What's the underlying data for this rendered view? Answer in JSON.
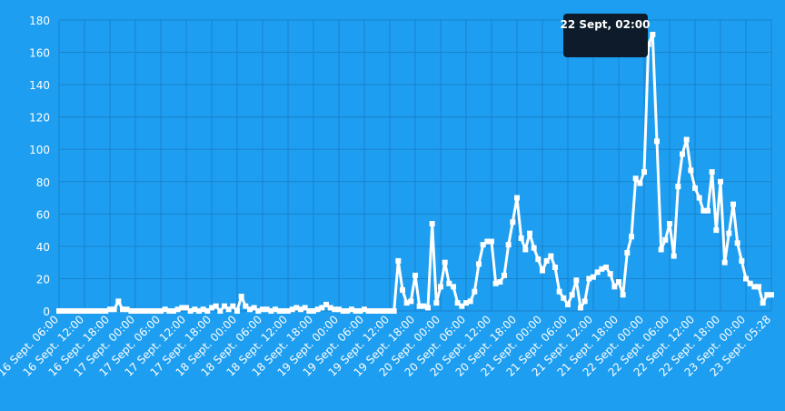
{
  "chart_data": {
    "type": "line",
    "tooltip": "22 Sept, 02:00",
    "categories": [
      "16 Sept. 06:00",
      null,
      null,
      null,
      null,
      null,
      "16 Sept. 12:00",
      null,
      null,
      null,
      null,
      null,
      "16 Sept. 18:00",
      null,
      null,
      null,
      null,
      null,
      "17 Sept. 00:00",
      null,
      null,
      null,
      null,
      null,
      "17 Sept. 06:00",
      null,
      null,
      null,
      null,
      null,
      "17 Sept. 12:00",
      null,
      null,
      null,
      null,
      null,
      "17 Sept. 18:00",
      null,
      null,
      null,
      null,
      null,
      "18 Sept. 00:00",
      null,
      null,
      null,
      null,
      null,
      "18 Sept. 06:00",
      null,
      null,
      null,
      null,
      null,
      "18 Sept. 12:00",
      null,
      null,
      null,
      null,
      null,
      "18 Sept. 18:00",
      null,
      null,
      null,
      null,
      null,
      "19 Sept. 00:00",
      null,
      null,
      null,
      null,
      null,
      "19 Sept. 06:00",
      null,
      null,
      null,
      null,
      null,
      "19 Sept. 12:00",
      null,
      null,
      null,
      null,
      null,
      "19 Sept. 18:00",
      null,
      null,
      null,
      null,
      null,
      "20 Sept. 00:00",
      null,
      null,
      null,
      null,
      null,
      "20 Sept. 06:00",
      null,
      null,
      null,
      null,
      null,
      "20 Sept. 12:00",
      null,
      null,
      null,
      null,
      null,
      "20 Sept. 18:00",
      null,
      null,
      null,
      null,
      null,
      "21 Sept. 00:00",
      null,
      null,
      null,
      null,
      null,
      "21 Sept. 06:00",
      null,
      null,
      null,
      null,
      null,
      "21 Sept. 12:00",
      null,
      null,
      null,
      null,
      null,
      "21 Sept. 18:00",
      null,
      null,
      null,
      null,
      null,
      "22 Sept. 00:00",
      null,
      null,
      null,
      null,
      null,
      "22 Sept. 06:00",
      null,
      null,
      null,
      null,
      null,
      "22 Sept. 12:00",
      null,
      null,
      null,
      null,
      null,
      "22 Sept. 18:00",
      null,
      null,
      null,
      null,
      null,
      "23 Sept. 00:00",
      null,
      null,
      null,
      null,
      null,
      "23 Sept. 05:28"
    ],
    "values": [
      0,
      0,
      0,
      0,
      0,
      0,
      0,
      0,
      0,
      0,
      0,
      0,
      1,
      1,
      6,
      1,
      1,
      0,
      0,
      0,
      0,
      0,
      0,
      0,
      0,
      1,
      0,
      0,
      1,
      2,
      2,
      0,
      1,
      0,
      1,
      0,
      2,
      3,
      0,
      3,
      1,
      3,
      0,
      9,
      3,
      1,
      2,
      0,
      1,
      1,
      0,
      1,
      0,
      0,
      0,
      1,
      2,
      1,
      2,
      0,
      0,
      1,
      2,
      4,
      2,
      1,
      1,
      0,
      0,
      1,
      0,
      0,
      1,
      0,
      0,
      0,
      0,
      0,
      0,
      0,
      31,
      13,
      5,
      6,
      22,
      3,
      3,
      2,
      54,
      5,
      15,
      30,
      17,
      15,
      5,
      3,
      5,
      6,
      12,
      29,
      41,
      43,
      43,
      17,
      18,
      22,
      41,
      55,
      70,
      45,
      38,
      48,
      39,
      32,
      25,
      31,
      34,
      27,
      12,
      8,
      4,
      10,
      19,
      2,
      6,
      20,
      21,
      24,
      26,
      27,
      23,
      15,
      18,
      10,
      36,
      46,
      82,
      79,
      86,
      165,
      171,
      105,
      38,
      44,
      54,
      34,
      77,
      97,
      106,
      87,
      76,
      70,
      62,
      62,
      86,
      50,
      80,
      30,
      48,
      66,
      42,
      31,
      20,
      17,
      15,
      15,
      5,
      10,
      10
    ],
    "color": "#ffffff",
    "ylim": [
      0,
      180
    ],
    "yticks": [
      0,
      20,
      40,
      60,
      80,
      100,
      120,
      140,
      160,
      180
    ],
    "grid": true
  }
}
